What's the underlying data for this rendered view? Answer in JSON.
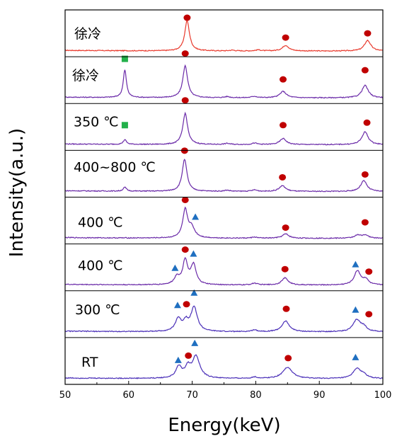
{
  "chart_data": {
    "type": "line",
    "title": "",
    "xlabel": "Energy(keV)",
    "ylabel": "Intensity(a.u.)",
    "xlim": [
      50,
      100
    ],
    "x_ticks": [
      50,
      60,
      70,
      80,
      90,
      100
    ],
    "y_ticks_shown": false,
    "grid": false,
    "legend": "none",
    "stack_order": "top-to-bottom",
    "colors": {
      "red_trace": "#e8392c",
      "purple_trace": "#6a2aa8",
      "blue_trace": "#4a2fb8",
      "circle_marker": "#c00000",
      "square_marker": "#22b04a",
      "triangle_marker": "#1f6fc0"
    },
    "series": [
      {
        "label": "徐冷",
        "color_key": "red_trace",
        "peaks": [
          {
            "x": 69.2,
            "h": 0.85,
            "w": 0.45
          },
          {
            "x": 84.7,
            "h": 0.16,
            "w": 0.6
          },
          {
            "x": 97.6,
            "h": 0.3,
            "w": 0.6
          },
          {
            "x": 76.3,
            "h": 0.02,
            "w": 0.5
          },
          {
            "x": 80.4,
            "h": 0.03,
            "w": 0.5
          }
        ],
        "markers": [
          {
            "shape": "circle",
            "x": 69.2,
            "y": 0.94
          },
          {
            "shape": "circle",
            "x": 84.7,
            "y": 0.38
          },
          {
            "shape": "circle",
            "x": 97.6,
            "y": 0.5
          }
        ]
      },
      {
        "label": "徐冷",
        "color_key": "purple_trace",
        "peaks": [
          {
            "x": 59.4,
            "h": 0.78,
            "w": 0.3
          },
          {
            "x": 68.9,
            "h": 0.9,
            "w": 0.45
          },
          {
            "x": 84.3,
            "h": 0.18,
            "w": 0.6
          },
          {
            "x": 97.2,
            "h": 0.35,
            "w": 0.6
          },
          {
            "x": 75.5,
            "h": 0.03,
            "w": 0.5
          },
          {
            "x": 79.8,
            "h": 0.04,
            "w": 0.5
          }
        ],
        "markers": [
          {
            "shape": "square",
            "x": 59.4,
            "y": 1.1
          },
          {
            "shape": "circle",
            "x": 68.9,
            "y": 1.25
          },
          {
            "shape": "circle",
            "x": 84.3,
            "y": 0.52
          },
          {
            "shape": "circle",
            "x": 97.2,
            "y": 0.78
          }
        ]
      },
      {
        "label": "350 ℃",
        "color_key": "purple_trace",
        "peaks": [
          {
            "x": 59.4,
            "h": 0.13,
            "w": 0.3
          },
          {
            "x": 68.9,
            "h": 0.88,
            "w": 0.45
          },
          {
            "x": 84.3,
            "h": 0.17,
            "w": 0.6
          },
          {
            "x": 97.2,
            "h": 0.36,
            "w": 0.6
          },
          {
            "x": 75.5,
            "h": 0.03,
            "w": 0.5
          },
          {
            "x": 79.8,
            "h": 0.04,
            "w": 0.5
          }
        ],
        "markers": [
          {
            "shape": "square",
            "x": 59.4,
            "y": 0.55
          },
          {
            "shape": "circle",
            "x": 68.9,
            "y": 1.25
          },
          {
            "shape": "circle",
            "x": 84.3,
            "y": 0.55
          },
          {
            "shape": "circle",
            "x": 97.5,
            "y": 0.62
          }
        ]
      },
      {
        "label": "400~800 ℃",
        "color_key": "purple_trace",
        "peaks": [
          {
            "x": 59.4,
            "h": 0.11,
            "w": 0.3
          },
          {
            "x": 68.8,
            "h": 0.9,
            "w": 0.45
          },
          {
            "x": 84.2,
            "h": 0.16,
            "w": 0.6
          },
          {
            "x": 97.0,
            "h": 0.3,
            "w": 0.6
          },
          {
            "x": 75.5,
            "h": 0.03,
            "w": 0.5
          },
          {
            "x": 79.8,
            "h": 0.04,
            "w": 0.5
          }
        ],
        "markers": [
          {
            "shape": "circle",
            "x": 68.8,
            "y": 1.15
          },
          {
            "shape": "circle",
            "x": 84.2,
            "y": 0.4
          },
          {
            "shape": "circle",
            "x": 97.2,
            "y": 0.48
          }
        ]
      },
      {
        "label": "400 ℃",
        "color_key": "purple_trace",
        "peaks": [
          {
            "x": 68.9,
            "h": 0.78,
            "w": 0.45
          },
          {
            "x": 69.9,
            "h": 0.28,
            "w": 0.6
          },
          {
            "x": 84.7,
            "h": 0.12,
            "w": 0.6
          },
          {
            "x": 96.0,
            "h": 0.08,
            "w": 0.6
          },
          {
            "x": 97.2,
            "h": 0.09,
            "w": 0.6
          },
          {
            "x": 79.8,
            "h": 0.03,
            "w": 0.5
          }
        ],
        "markers": [
          {
            "shape": "circle",
            "x": 68.9,
            "y": 1.08
          },
          {
            "shape": "triangle",
            "x": 70.5,
            "y": 0.6
          },
          {
            "shape": "circle",
            "x": 84.7,
            "y": 0.3
          },
          {
            "shape": "circle",
            "x": 97.2,
            "y": 0.45
          }
        ]
      },
      {
        "label": "400 ℃",
        "color_key": "purple_trace",
        "peaks": [
          {
            "x": 67.6,
            "h": 0.22,
            "w": 0.5
          },
          {
            "x": 68.9,
            "h": 0.68,
            "w": 0.45
          },
          {
            "x": 70.2,
            "h": 0.55,
            "w": 0.5
          },
          {
            "x": 84.6,
            "h": 0.2,
            "w": 0.6
          },
          {
            "x": 96.0,
            "h": 0.4,
            "w": 0.6
          },
          {
            "x": 97.3,
            "h": 0.15,
            "w": 0.5
          },
          {
            "x": 79.8,
            "h": 0.05,
            "w": 0.5
          }
        ],
        "markers": [
          {
            "shape": "triangle",
            "x": 67.3,
            "y": 0.48
          },
          {
            "shape": "circle",
            "x": 68.9,
            "y": 1.0
          },
          {
            "shape": "triangle",
            "x": 70.2,
            "y": 0.88
          },
          {
            "shape": "circle",
            "x": 84.6,
            "y": 0.45
          },
          {
            "shape": "triangle",
            "x": 95.7,
            "y": 0.58
          },
          {
            "shape": "circle",
            "x": 97.8,
            "y": 0.38
          }
        ]
      },
      {
        "label": "300 ℃",
        "color_key": "blue_trace",
        "peaks": [
          {
            "x": 67.8,
            "h": 0.35,
            "w": 0.55
          },
          {
            "x": 69.0,
            "h": 0.25,
            "w": 0.5
          },
          {
            "x": 70.3,
            "h": 0.68,
            "w": 0.6
          },
          {
            "x": 84.7,
            "h": 0.3,
            "w": 0.7
          },
          {
            "x": 95.9,
            "h": 0.33,
            "w": 0.7
          },
          {
            "x": 97.0,
            "h": 0.12,
            "w": 0.6
          },
          {
            "x": 79.8,
            "h": 0.05,
            "w": 0.5
          }
        ],
        "markers": [
          {
            "shape": "triangle",
            "x": 67.7,
            "y": 0.75
          },
          {
            "shape": "circle",
            "x": 69.1,
            "y": 0.78
          },
          {
            "shape": "triangle",
            "x": 70.3,
            "y": 1.1
          },
          {
            "shape": "circle",
            "x": 84.8,
            "y": 0.65
          },
          {
            "shape": "triangle",
            "x": 95.7,
            "y": 0.62
          },
          {
            "shape": "circle",
            "x": 97.8,
            "y": 0.5
          }
        ]
      },
      {
        "label": "RT",
        "color_key": "blue_trace",
        "peaks": [
          {
            "x": 67.9,
            "h": 0.32,
            "w": 0.55
          },
          {
            "x": 69.3,
            "h": 0.28,
            "w": 0.5
          },
          {
            "x": 70.6,
            "h": 0.62,
            "w": 0.7
          },
          {
            "x": 85.0,
            "h": 0.32,
            "w": 0.9
          },
          {
            "x": 95.9,
            "h": 0.28,
            "w": 0.7
          },
          {
            "x": 97.0,
            "h": 0.1,
            "w": 0.6
          },
          {
            "x": 79.8,
            "h": 0.04,
            "w": 0.5
          }
        ],
        "markers": [
          {
            "shape": "triangle",
            "x": 67.8,
            "y": 0.52
          },
          {
            "shape": "circle",
            "x": 69.4,
            "y": 0.65
          },
          {
            "shape": "triangle",
            "x": 70.4,
            "y": 1.0
          },
          {
            "shape": "circle",
            "x": 85.1,
            "y": 0.58
          },
          {
            "shape": "triangle",
            "x": 95.7,
            "y": 0.6
          }
        ]
      }
    ]
  }
}
